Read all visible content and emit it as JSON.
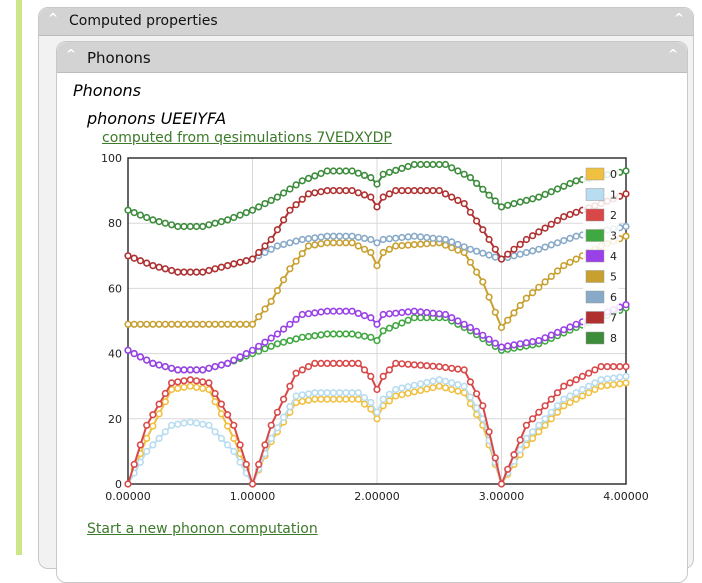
{
  "panel": {
    "title": "Computed properties"
  },
  "inner_panel": {
    "title": "Phonons"
  },
  "section_title": "Phonons",
  "subsection_title": "phonons UEEIYFA",
  "computed_link": "computed from qesimulations 7VEDXYDP",
  "start_link": "Start a new phonon computation",
  "chevron_glyph": "^",
  "chart_data": {
    "type": "line",
    "title": "",
    "xlabel": "",
    "ylabel": "",
    "xlim": [
      0,
      4
    ],
    "ylim": [
      0,
      100
    ],
    "x_ticks": [
      "0.00000",
      "1.00000",
      "2.00000",
      "3.00000",
      "4.00000"
    ],
    "y_ticks": [
      "0",
      "20",
      "40",
      "60",
      "80",
      "100"
    ],
    "grid": true,
    "legend_position": "top-right",
    "series": [
      {
        "name": "0",
        "color": "#f0c040",
        "values": [
          [
            0,
            0
          ],
          [
            0.15,
            14
          ],
          [
            0.35,
            29
          ],
          [
            0.5,
            30
          ],
          [
            0.65,
            29
          ],
          [
            0.85,
            14
          ],
          [
            1,
            0
          ],
          [
            1.15,
            13
          ],
          [
            1.35,
            25
          ],
          [
            1.5,
            26
          ],
          [
            1.85,
            26
          ],
          [
            1.95,
            23
          ],
          [
            2,
            20
          ],
          [
            2.05,
            24
          ],
          [
            2.15,
            27
          ],
          [
            2.5,
            30
          ],
          [
            2.7,
            28
          ],
          [
            2.85,
            18
          ],
          [
            3,
            0
          ],
          [
            3.2,
            12
          ],
          [
            3.5,
            24
          ],
          [
            3.8,
            30
          ],
          [
            4,
            31
          ]
        ]
      },
      {
        "name": "1",
        "color": "#b8dcf0",
        "values": [
          [
            0,
            0
          ],
          [
            0.15,
            10
          ],
          [
            0.35,
            18
          ],
          [
            0.5,
            19
          ],
          [
            0.65,
            18
          ],
          [
            0.85,
            10
          ],
          [
            1,
            0
          ],
          [
            1.15,
            14
          ],
          [
            1.35,
            27
          ],
          [
            1.5,
            28
          ],
          [
            1.85,
            28
          ],
          [
            1.95,
            25
          ],
          [
            2,
            22
          ],
          [
            2.05,
            26
          ],
          [
            2.15,
            29
          ],
          [
            2.5,
            32
          ],
          [
            2.7,
            30
          ],
          [
            2.85,
            20
          ],
          [
            3,
            0
          ],
          [
            3.2,
            14
          ],
          [
            3.5,
            26
          ],
          [
            3.8,
            32
          ],
          [
            4,
            33
          ]
        ]
      },
      {
        "name": "2",
        "color": "#d84848",
        "values": [
          [
            0,
            0
          ],
          [
            0.15,
            18
          ],
          [
            0.35,
            31
          ],
          [
            0.5,
            32
          ],
          [
            0.65,
            31
          ],
          [
            0.85,
            18
          ],
          [
            1,
            0
          ],
          [
            1.15,
            18
          ],
          [
            1.35,
            34
          ],
          [
            1.5,
            37
          ],
          [
            1.85,
            37
          ],
          [
            1.95,
            33
          ],
          [
            2,
            29
          ],
          [
            2.05,
            33
          ],
          [
            2.15,
            37
          ],
          [
            2.5,
            36
          ],
          [
            2.7,
            35
          ],
          [
            2.85,
            24
          ],
          [
            3,
            0
          ],
          [
            3.2,
            18
          ],
          [
            3.5,
            30
          ],
          [
            3.8,
            36
          ],
          [
            4,
            36
          ]
        ]
      },
      {
        "name": "3",
        "color": "#40a840",
        "values": [
          [
            0,
            41
          ],
          [
            0.2,
            37
          ],
          [
            0.4,
            35
          ],
          [
            0.6,
            35
          ],
          [
            0.8,
            37
          ],
          [
            1,
            40
          ],
          [
            1.2,
            43
          ],
          [
            1.4,
            45
          ],
          [
            1.6,
            46
          ],
          [
            1.8,
            46
          ],
          [
            1.95,
            45
          ],
          [
            2,
            44
          ],
          [
            2.05,
            47
          ],
          [
            2.3,
            51
          ],
          [
            2.55,
            51
          ],
          [
            2.75,
            47
          ],
          [
            3,
            41
          ],
          [
            3.3,
            43
          ],
          [
            3.6,
            48
          ],
          [
            4,
            54
          ]
        ]
      },
      {
        "name": "4",
        "color": "#9940e8",
        "values": [
          [
            0,
            41
          ],
          [
            0.2,
            37
          ],
          [
            0.4,
            35
          ],
          [
            0.6,
            35
          ],
          [
            0.8,
            37
          ],
          [
            1,
            41
          ],
          [
            1.2,
            46
          ],
          [
            1.4,
            52
          ],
          [
            1.6,
            53
          ],
          [
            1.8,
            53
          ],
          [
            1.95,
            51
          ],
          [
            2,
            49
          ],
          [
            2.05,
            52
          ],
          [
            2.3,
            53
          ],
          [
            2.55,
            52
          ],
          [
            2.75,
            48
          ],
          [
            3,
            42
          ],
          [
            3.3,
            44
          ],
          [
            3.6,
            49
          ],
          [
            4,
            55
          ]
        ]
      },
      {
        "name": "5",
        "color": "#c8a030",
        "values": [
          [
            0,
            49
          ],
          [
            0.25,
            49
          ],
          [
            0.5,
            49
          ],
          [
            0.75,
            49
          ],
          [
            1,
            49
          ],
          [
            1.15,
            56
          ],
          [
            1.3,
            66
          ],
          [
            1.45,
            73
          ],
          [
            1.6,
            74
          ],
          [
            1.8,
            74
          ],
          [
            1.95,
            71
          ],
          [
            2,
            67
          ],
          [
            2.05,
            71
          ],
          [
            2.15,
            73
          ],
          [
            2.5,
            74
          ],
          [
            2.7,
            71
          ],
          [
            2.85,
            62
          ],
          [
            3,
            48
          ],
          [
            3.2,
            57
          ],
          [
            3.5,
            67
          ],
          [
            3.8,
            73
          ],
          [
            4,
            76
          ]
        ]
      },
      {
        "name": "6",
        "color": "#88aac8",
        "values": [
          [
            0,
            70
          ],
          [
            0.2,
            67
          ],
          [
            0.4,
            65
          ],
          [
            0.6,
            65
          ],
          [
            0.8,
            67
          ],
          [
            1,
            69
          ],
          [
            1.2,
            73
          ],
          [
            1.4,
            75
          ],
          [
            1.6,
            76
          ],
          [
            1.8,
            76
          ],
          [
            1.95,
            75
          ],
          [
            2,
            74
          ],
          [
            2.05,
            75
          ],
          [
            2.3,
            76
          ],
          [
            2.55,
            75
          ],
          [
            2.75,
            72
          ],
          [
            3,
            69
          ],
          [
            3.3,
            72
          ],
          [
            3.6,
            76
          ],
          [
            4,
            79
          ]
        ]
      },
      {
        "name": "7",
        "color": "#b03030",
        "values": [
          [
            0,
            70
          ],
          [
            0.2,
            67
          ],
          [
            0.4,
            65
          ],
          [
            0.6,
            65
          ],
          [
            0.8,
            67
          ],
          [
            1,
            69
          ],
          [
            1.15,
            75
          ],
          [
            1.3,
            84
          ],
          [
            1.45,
            89
          ],
          [
            1.6,
            90
          ],
          [
            1.8,
            90
          ],
          [
            1.95,
            88
          ],
          [
            2,
            85
          ],
          [
            2.05,
            88
          ],
          [
            2.15,
            90
          ],
          [
            2.5,
            90
          ],
          [
            2.7,
            86
          ],
          [
            2.85,
            78
          ],
          [
            3,
            69
          ],
          [
            3.2,
            75
          ],
          [
            3.5,
            82
          ],
          [
            3.8,
            86
          ],
          [
            4,
            89
          ]
        ]
      },
      {
        "name": "8",
        "color": "#3c8c3c",
        "values": [
          [
            0,
            84
          ],
          [
            0.2,
            81
          ],
          [
            0.4,
            79
          ],
          [
            0.6,
            79
          ],
          [
            0.8,
            81
          ],
          [
            1,
            84
          ],
          [
            1.2,
            88
          ],
          [
            1.4,
            93
          ],
          [
            1.6,
            96
          ],
          [
            1.8,
            96
          ],
          [
            1.95,
            94
          ],
          [
            2,
            92
          ],
          [
            2.05,
            95
          ],
          [
            2.3,
            98
          ],
          [
            2.55,
            98
          ],
          [
            2.75,
            94
          ],
          [
            3,
            85
          ],
          [
            3.3,
            88
          ],
          [
            3.6,
            93
          ],
          [
            4,
            96
          ]
        ]
      }
    ]
  }
}
